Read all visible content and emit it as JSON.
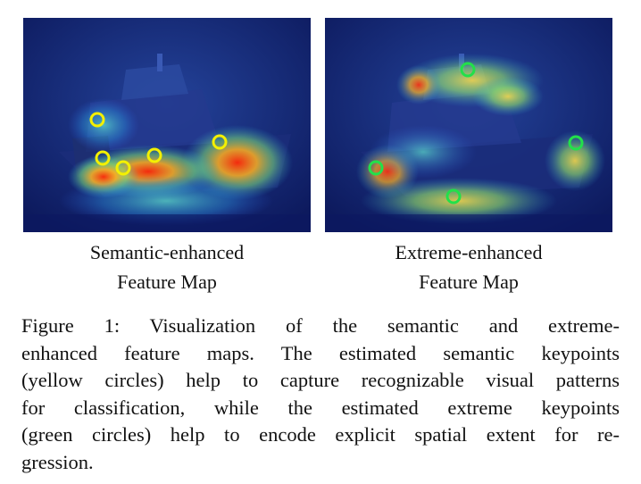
{
  "panels": [
    {
      "caption_line1": "Semantic-enhanced",
      "caption_line2": "Feature Map",
      "keypoint_color": "#f4f000",
      "keypoint_kind": "semantic",
      "keypoint_count": 5
    },
    {
      "caption_line1": "Extreme-enhanced",
      "caption_line2": "Feature Map",
      "keypoint_color": "#22e04a",
      "keypoint_kind": "extreme",
      "keypoint_count": 4
    }
  ],
  "figure_caption": {
    "lines": [
      "Figure 1: Visualization of the semantic and extreme-",
      "enhanced feature maps. The estimated semantic keypoints",
      "(yellow circles) help to capture recognizable visual patterns",
      "for classification, while the estimated extreme keypoints",
      "(green circles) help to encode explicit spatial extent for re-",
      "gression."
    ]
  },
  "colors": {
    "heatmap_background": "#0f1f6e",
    "hot": "#ff3a10",
    "warm": "#ffd23a"
  }
}
